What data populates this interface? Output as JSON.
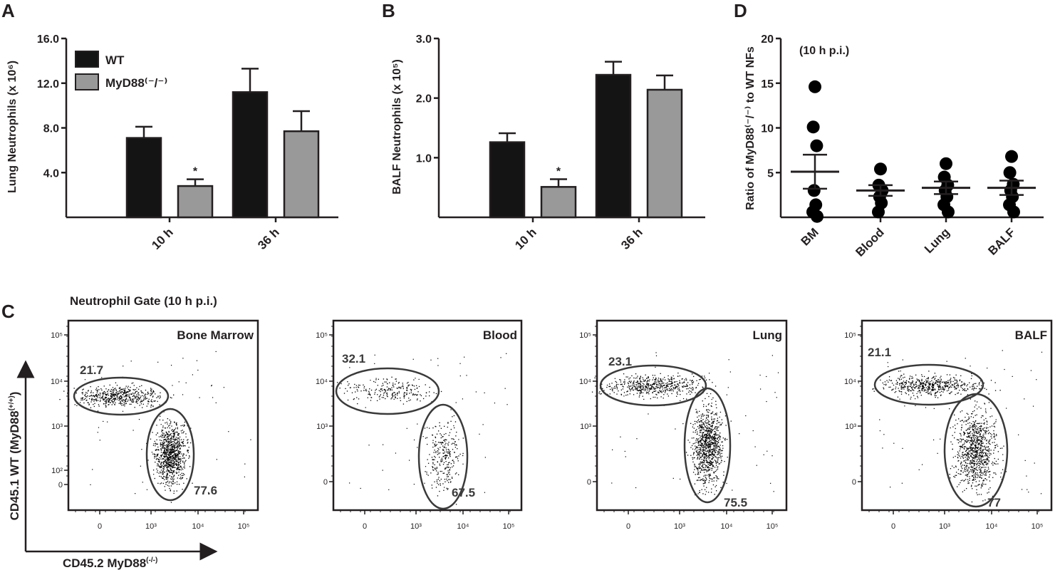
{
  "panel_letters": {
    "a": "A",
    "b": "B",
    "c": "C",
    "d": "D"
  },
  "colors": {
    "wt": "#141414",
    "myd88": "#999999",
    "axis": "#231f20",
    "dots": "#000000"
  },
  "chart_data": [
    {
      "id": "A",
      "type": "bar",
      "ylabel": "Lung Neutrophils (x 10⁶)",
      "ylim": [
        0,
        16
      ],
      "yticks": [
        4.0,
        8.0,
        12.0,
        16.0
      ],
      "ytick_labels": [
        "4.0",
        "8.0",
        "12.0",
        "16.0"
      ],
      "categories": [
        "10 h",
        "36 h"
      ],
      "series": [
        {
          "name": "WT",
          "values": [
            7.1,
            11.2
          ],
          "errors": [
            1.0,
            2.1
          ]
        },
        {
          "name": "MyD88⁽⁻/⁻⁾",
          "values": [
            2.8,
            7.7
          ],
          "errors": [
            0.6,
            1.8
          ]
        }
      ],
      "annotations": [
        {
          "series": 1,
          "category": 0,
          "text": "*"
        }
      ],
      "legend": "top-left"
    },
    {
      "id": "B",
      "type": "bar",
      "ylabel": "BALF Neutrophils (x 10⁵)",
      "ylim": [
        0,
        3
      ],
      "yticks": [
        1.0,
        2.0,
        3.0
      ],
      "ytick_labels": [
        "1.0",
        "2.0",
        "3.0"
      ],
      "categories": [
        "10 h",
        "36 h"
      ],
      "series": [
        {
          "name": "WT",
          "values": [
            1.26,
            2.39
          ],
          "errors": [
            0.15,
            0.22
          ]
        },
        {
          "name": "MyD88⁽⁻/⁻⁾",
          "values": [
            0.51,
            2.14
          ],
          "errors": [
            0.13,
            0.24
          ]
        }
      ],
      "annotations": [
        {
          "series": 1,
          "category": 0,
          "text": "*"
        }
      ]
    },
    {
      "id": "D",
      "type": "scatter",
      "ylabel": "Ratio of MyD88⁽⁻/⁻⁾ to WT NFs",
      "annotation": "(10 h p.i.)",
      "ylim": [
        0,
        20
      ],
      "yticks": [
        5,
        10,
        15,
        20
      ],
      "ytick_labels": [
        "5",
        "10",
        "15",
        "20"
      ],
      "categories": [
        "BM",
        "Blood",
        "Lung",
        "BALF"
      ],
      "points": [
        [
          14.6,
          10.1,
          8.0,
          3.0,
          1.4,
          0.6,
          0.1
        ],
        [
          5.4,
          3.6,
          3.0,
          2.3,
          1.6,
          0.6
        ],
        [
          6.0,
          4.5,
          3.6,
          3.0,
          2.3,
          1.4,
          0.6
        ],
        [
          6.8,
          5.0,
          3.7,
          3.0,
          2.3,
          1.4,
          0.6
        ]
      ],
      "mean": [
        5.1,
        3.0,
        3.3,
        3.3
      ],
      "sem": [
        1.9,
        0.6,
        0.7,
        0.8
      ]
    }
  ],
  "flow": {
    "title": "Neutrophil Gate (10 h p.i.)",
    "x_axis": "CD45.2 MyD88",
    "x_axis_sup": "(-/-)",
    "y_axis": "CD45.1 WT (MyD88",
    "y_axis_sup": "(+/+)",
    "y_axis_end": ")",
    "x_ticks": [
      "0",
      "10³",
      "10⁴",
      "10⁵"
    ],
    "y_ticks_full": [
      "10⁵",
      "10⁴",
      "10³",
      "10²",
      "0"
    ],
    "y_ticks_short": [
      "10⁵",
      "10⁴",
      "10³",
      "0"
    ],
    "plots": [
      {
        "name": "Bone Marrow",
        "upper_pct": "21.7",
        "lower_pct": "77.6"
      },
      {
        "name": "Blood",
        "upper_pct": "32.1",
        "lower_pct": "67.5"
      },
      {
        "name": "Lung",
        "upper_pct": "23.1",
        "lower_pct": "75.5"
      },
      {
        "name": "BALF",
        "upper_pct": "21.1",
        "lower_pct": "77"
      }
    ]
  }
}
